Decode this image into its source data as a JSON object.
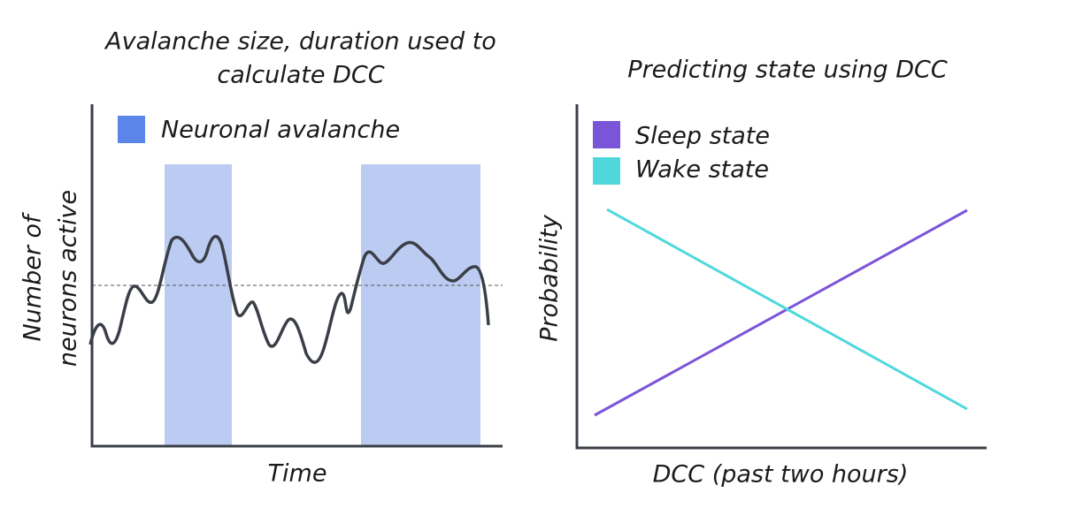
{
  "left_panel": {
    "title_lines": [
      "Avalanche size, duration used to",
      "calculate DCC"
    ],
    "legend": "Neuronal avalanche",
    "y_label_lines": [
      "Number of",
      "neurons active"
    ],
    "x_label": "Time"
  },
  "right_panel": {
    "title": "Predicting state using DCC",
    "legend": [
      "Sleep state",
      "Wake state"
    ],
    "y_label": "Probability",
    "x_label": "DCC (past two hours)"
  }
}
